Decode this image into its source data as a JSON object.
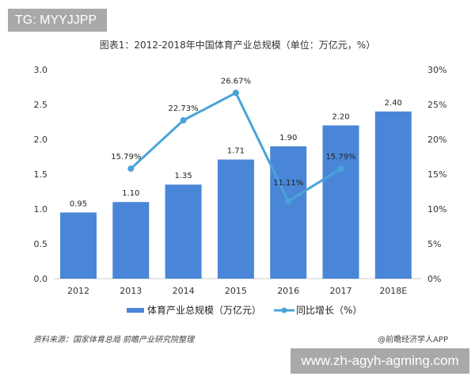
{
  "badge": "TG: MYYJJPP",
  "footer": {
    "source": "资料来源：国家体育总局 前瞻产业研究院整理",
    "credit": "@前瞻经济学人APP",
    "site": "www.zh-agyh-agming.com"
  },
  "chart_data": {
    "type": "bar+line",
    "title": "图表1：2012-2018年中国体育产业总规模（单位：万亿元，%）",
    "categories": [
      "2012",
      "2013",
      "2014",
      "2015",
      "2016",
      "2017",
      "2018E"
    ],
    "series": [
      {
        "name": "体育产业总规模（万亿元）",
        "type": "bar",
        "axis": "left",
        "values": [
          0.95,
          1.1,
          1.35,
          1.71,
          1.9,
          2.2,
          2.4
        ],
        "labels": [
          "0.95",
          "1.10",
          "1.35",
          "1.71",
          "1.90",
          "2.20",
          "2.40"
        ],
        "color": "#4a86d8"
      },
      {
        "name": "同比增长（%）",
        "type": "line",
        "axis": "right",
        "values": [
          null,
          15.79,
          22.73,
          26.67,
          11.11,
          15.79,
          null
        ],
        "labels": [
          "",
          "15.79%",
          "22.73%",
          "26.67%",
          "11.11%",
          "15.79%",
          ""
        ],
        "color": "#4aa3d8"
      }
    ],
    "left_axis": {
      "range": [
        0,
        3.0
      ],
      "ticks": [
        "0.0",
        "0.5",
        "1.0",
        "1.5",
        "2.0",
        "2.5",
        "3.0"
      ]
    },
    "right_axis": {
      "range": [
        0,
        30
      ],
      "ticks": [
        "0%",
        "5%",
        "10%",
        "15%",
        "20%",
        "25%",
        "30%"
      ]
    },
    "grid": false,
    "legend": "bottom"
  }
}
